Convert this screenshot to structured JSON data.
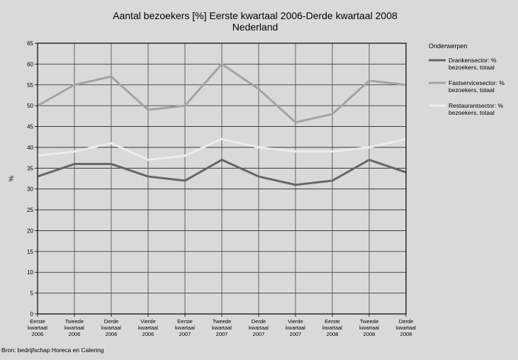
{
  "chart_data": {
    "type": "line",
    "title": "Aantal bezoekers [%] Eerste kwartaal 2006-Derde kwartaal 2008",
    "subtitle": "Nederland",
    "ylabel": "%",
    "xlabel": "",
    "ylim": [
      0,
      65
    ],
    "yticks": [
      0,
      5,
      10,
      15,
      20,
      25,
      30,
      35,
      40,
      45,
      50,
      55,
      60,
      65
    ],
    "grid": true,
    "categories": [
      [
        "Eerste",
        "kwartaal",
        "2006"
      ],
      [
        "Tweede",
        "kwartaal",
        "2006"
      ],
      [
        "Derde",
        "kwartaal",
        "2006"
      ],
      [
        "Vierde",
        "kwartaal",
        "2006"
      ],
      [
        "Eerste",
        "kwartaal",
        "2007"
      ],
      [
        "Tweede",
        "kwartaal",
        "2007"
      ],
      [
        "Derde",
        "kwartaal",
        "2007"
      ],
      [
        "Vierde",
        "kwartaal",
        "2007"
      ],
      [
        "Eerste",
        "kwartaal",
        "2008"
      ],
      [
        "Tweede",
        "kwartaal",
        "2008"
      ],
      [
        "Derde",
        "kwartaal",
        "2008"
      ]
    ],
    "legend_title": "Onderwerpen",
    "legend_position": "right",
    "series": [
      {
        "name_lines": [
          "Drankensector: %",
          "bezoekers, totaal"
        ],
        "color": "#666666",
        "values": [
          33,
          36,
          36,
          33,
          32,
          37,
          33,
          31,
          32,
          37,
          34
        ]
      },
      {
        "name_lines": [
          "Fastservicesector: %",
          "bezoekers, totaal"
        ],
        "color": "#a3a3a3",
        "values": [
          50,
          55,
          57,
          49,
          50,
          60,
          54,
          46,
          48,
          56,
          55
        ]
      },
      {
        "name_lines": [
          "Restaurantsector: %",
          "bezoekers, totaal"
        ],
        "color": "#ececec",
        "values": [
          38,
          39,
          41,
          37,
          38,
          42,
          40,
          39,
          39,
          40,
          42
        ]
      }
    ],
    "source": "Bron: bedrijfschap Horeca en Catering"
  }
}
